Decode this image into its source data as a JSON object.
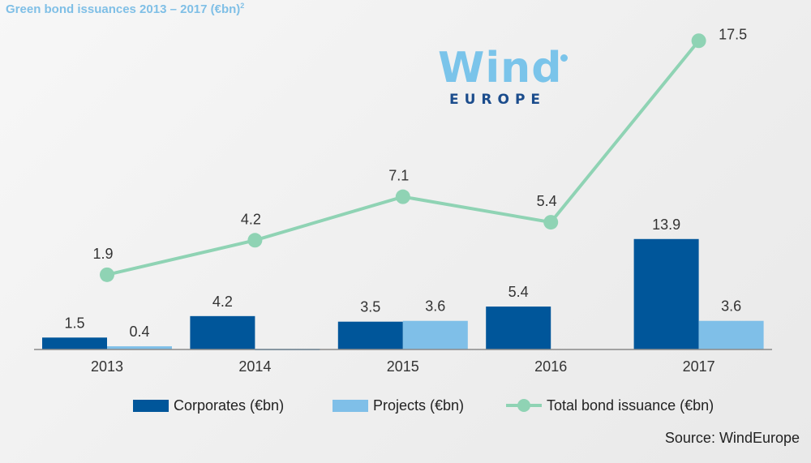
{
  "title": "Green bond issuances 2013 – 2017 (€bn)",
  "title_superscript": "2",
  "logo": {
    "word": "Wind",
    "sub": "EUROPE"
  },
  "source": "Source: WindEurope",
  "colors": {
    "corporates": "#00569a",
    "projects": "#7fbfe8",
    "total": "#8fd3b4",
    "title": "#7fbfe6"
  },
  "chart_data": {
    "type": "bar",
    "categories": [
      "2013",
      "2014",
      "2015",
      "2016",
      "2017"
    ],
    "series": [
      {
        "name": "Corporates (€bn)",
        "type": "bar",
        "values": [
          1.5,
          4.2,
          3.5,
          5.4,
          13.9
        ],
        "labels": [
          "1.5",
          "4.2",
          "3.5",
          "5.4",
          "13.9"
        ]
      },
      {
        "name": "Projects (€bn)",
        "type": "bar",
        "values": [
          0.4,
          0.1,
          3.6,
          0,
          3.6
        ],
        "labels": [
          "0.4",
          "",
          "3.6",
          "",
          "3.6"
        ]
      },
      {
        "name": "Total bond issuance (€bn)",
        "type": "line",
        "values": [
          1.9,
          4.2,
          7.1,
          5.4,
          17.5
        ],
        "labels": [
          "1.9",
          "4.2",
          "7.1",
          "5.4",
          "17.5"
        ]
      }
    ],
    "legend": "bottom",
    "grid": false
  }
}
